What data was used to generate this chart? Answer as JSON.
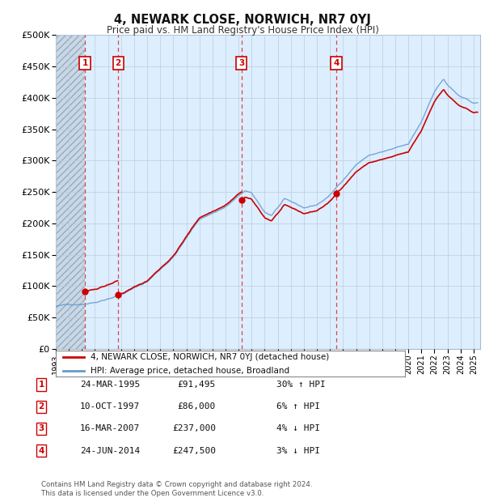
{
  "title": "4, NEWARK CLOSE, NORWICH, NR7 0YJ",
  "subtitle": "Price paid vs. HM Land Registry's House Price Index (HPI)",
  "sales": [
    {
      "label": "1",
      "date_num": 1995.23,
      "price": 91495
    },
    {
      "label": "2",
      "date_num": 1997.78,
      "price": 86000
    },
    {
      "label": "3",
      "date_num": 2007.21,
      "price": 237000
    },
    {
      "label": "4",
      "date_num": 2014.48,
      "price": 247500
    }
  ],
  "sale_rows": [
    {
      "num": "1",
      "date": "24-MAR-1995",
      "price": "£91,495",
      "hpi": "30% ↑ HPI"
    },
    {
      "num": "2",
      "date": "10-OCT-1997",
      "price": "£86,000",
      "hpi": "6% ↑ HPI"
    },
    {
      "num": "3",
      "date": "16-MAR-2007",
      "price": "£237,000",
      "hpi": "4% ↓ HPI"
    },
    {
      "num": "4",
      "date": "24-JUN-2014",
      "price": "£247,500",
      "hpi": "3% ↓ HPI"
    }
  ],
  "legend_line1": "4, NEWARK CLOSE, NORWICH, NR7 0YJ (detached house)",
  "legend_line2": "HPI: Average price, detached house, Broadland",
  "footer": "Contains HM Land Registry data © Crown copyright and database right 2024.\nThis data is licensed under the Open Government Licence v3.0.",
  "ylim": [
    0,
    500000
  ],
  "yticks": [
    0,
    50000,
    100000,
    150000,
    200000,
    250000,
    300000,
    350000,
    400000,
    450000,
    500000
  ],
  "xlim_start": 1993.0,
  "xlim_end": 2025.5,
  "red_line_color": "#cc0000",
  "blue_line_color": "#6699cc",
  "dashed_color": "#dd3333",
  "sale_box_color": "#cc0000",
  "chart_bg": "#ddeeff",
  "hatch_region_end": 1995.23
}
